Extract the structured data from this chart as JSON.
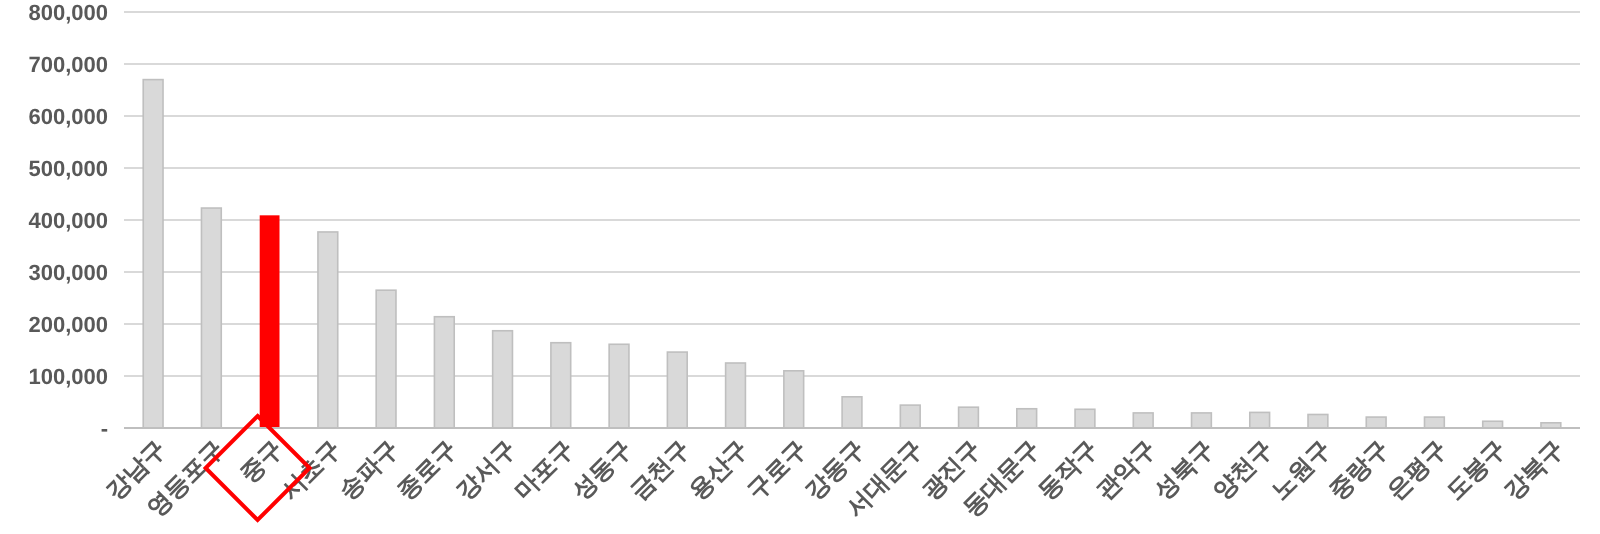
{
  "chart_data": {
    "type": "bar",
    "categories": [
      "강남구",
      "영등포구",
      "중구",
      "서초구",
      "송파구",
      "종로구",
      "강서구",
      "마포구",
      "성동구",
      "금천구",
      "용산구",
      "구로구",
      "강동구",
      "서대문구",
      "광진구",
      "동대문구",
      "동작구",
      "관악구",
      "성북구",
      "양천구",
      "노원구",
      "중랑구",
      "은평구",
      "도봉구",
      "강북구"
    ],
    "values": [
      670000,
      423000,
      409000,
      377000,
      265000,
      214000,
      187000,
      164000,
      161000,
      146000,
      125000,
      110000,
      60000,
      44000,
      40000,
      37000,
      36000,
      29000,
      29000,
      30000,
      26000,
      21000,
      21000,
      13000,
      10000
    ],
    "colors": [
      "#d9d9d9",
      "#d9d9d9",
      "#ff0000",
      "#d9d9d9",
      "#d9d9d9",
      "#d9d9d9",
      "#d9d9d9",
      "#d9d9d9",
      "#d9d9d9",
      "#d9d9d9",
      "#d9d9d9",
      "#d9d9d9",
      "#d9d9d9",
      "#d9d9d9",
      "#d9d9d9",
      "#d9d9d9",
      "#d9d9d9",
      "#d9d9d9",
      "#d9d9d9",
      "#d9d9d9",
      "#d9d9d9",
      "#d9d9d9",
      "#d9d9d9",
      "#d9d9d9",
      "#d9d9d9"
    ],
    "ylim": [
      0,
      800000
    ],
    "yticks": [
      {
        "value": 0,
        "label": "-"
      },
      {
        "value": 100000,
        "label": "100,000"
      },
      {
        "value": 200000,
        "label": "200,000"
      },
      {
        "value": 300000,
        "label": "300,000"
      },
      {
        "value": 400000,
        "label": "400,000"
      },
      {
        "value": 500000,
        "label": "500,000"
      },
      {
        "value": 600000,
        "label": "600,000"
      },
      {
        "value": 700000,
        "label": "700,000"
      },
      {
        "value": 800000,
        "label": "800,000"
      }
    ],
    "grid": "y"
  }
}
